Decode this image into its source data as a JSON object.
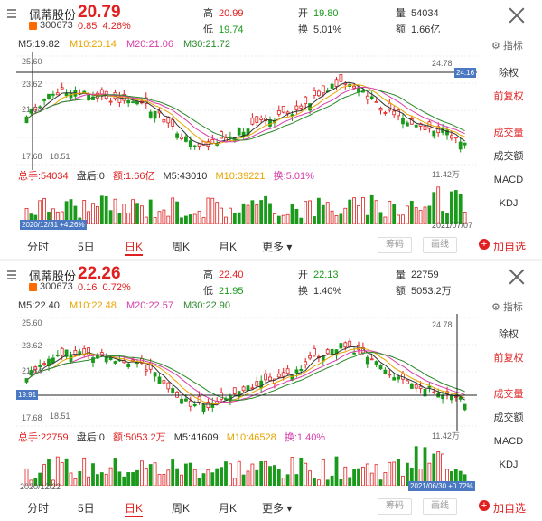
{
  "panels": [
    {
      "stock_name": "佩蒂股份",
      "code": "300673",
      "price": "20.79",
      "change": "0.85",
      "change_pct": "4.26%",
      "high_label": "高",
      "high": "20.99",
      "low_label": "低",
      "low": "19.74",
      "open_label": "开",
      "open": "19.80",
      "turnover_label": "换",
      "turnover": "5.01%",
      "volume_label": "量",
      "volume": "54034",
      "amount_label": "额",
      "amount": "1.66亿",
      "ma": {
        "m5": "M5:19.82",
        "m10": "M10:20.14",
        "m20": "M20:21.06",
        "m30": "M30:21.72"
      },
      "vol": {
        "total": "总手:54034",
        "after": "盘后:0",
        "amt": "额:1.66亿",
        "m5": "M5:43010",
        "m10": "M10:39221",
        "turn": "换:5.01%"
      },
      "axis": {
        "top": "25.60",
        "y2": "23.62",
        "y3": "21.64",
        "bottom": "17.68",
        "low_mark": "18.51",
        "high_mark": "24.78",
        "right_tag": "24.16",
        "vol_max": "11.42万"
      },
      "date_badge": "2020/12/31 +4.26%",
      "date_right": "2021/07/07"
    },
    {
      "stock_name": "佩蒂股份",
      "code": "300673",
      "price": "22.26",
      "change": "0.16",
      "change_pct": "0.72%",
      "high_label": "高",
      "high": "22.40",
      "low_label": "低",
      "low": "21.95",
      "open_label": "开",
      "open": "22.13",
      "turnover_label": "换",
      "turnover": "1.40%",
      "volume_label": "量",
      "volume": "22759",
      "amount_label": "额",
      "amount": "5053.2万",
      "ma": {
        "m5": "M5:22.40",
        "m10": "M10:22.48",
        "m20": "M20:22.57",
        "m30": "M30:22.90"
      },
      "vol": {
        "total": "总手:22759",
        "after": "盘后:0",
        "amt": "额:5053.2万",
        "m5": "M5:41609",
        "m10": "M10:46528",
        "turn": "换:1.40%"
      },
      "axis": {
        "top": "25.60",
        "y2": "23.62",
        "y3": "21.64",
        "bottom": "17.68",
        "low_mark": "18.51",
        "high_mark": "24.78",
        "left_tag": "19.91",
        "vol_max": "11.42万"
      },
      "date_left": "2020/12/22",
      "date_badge": "2021/06/30 +0.72%"
    }
  ],
  "side_menu": {
    "zhibiao": "指标",
    "chuquan": "除权",
    "qianfuquan": "前复权",
    "chengjiaoliang": "成交量",
    "chengjiaoe": "成交额",
    "macd": "MACD",
    "kdj": "KDJ"
  },
  "tabs": {
    "fenshi": "分时",
    "wuri": "5日",
    "rik": "日K",
    "zhouk": "周K",
    "yuek": "月K",
    "gengduo": "更多",
    "chouma": "筹码",
    "huaxian": "画线",
    "add": "加自选"
  },
  "colors": {
    "up": "#e02020",
    "down": "#1a9a1a",
    "ma10": "#e7a400",
    "ma20": "#d63ca8",
    "ma30": "#2a8a2a",
    "badge": "#4a78c2"
  }
}
